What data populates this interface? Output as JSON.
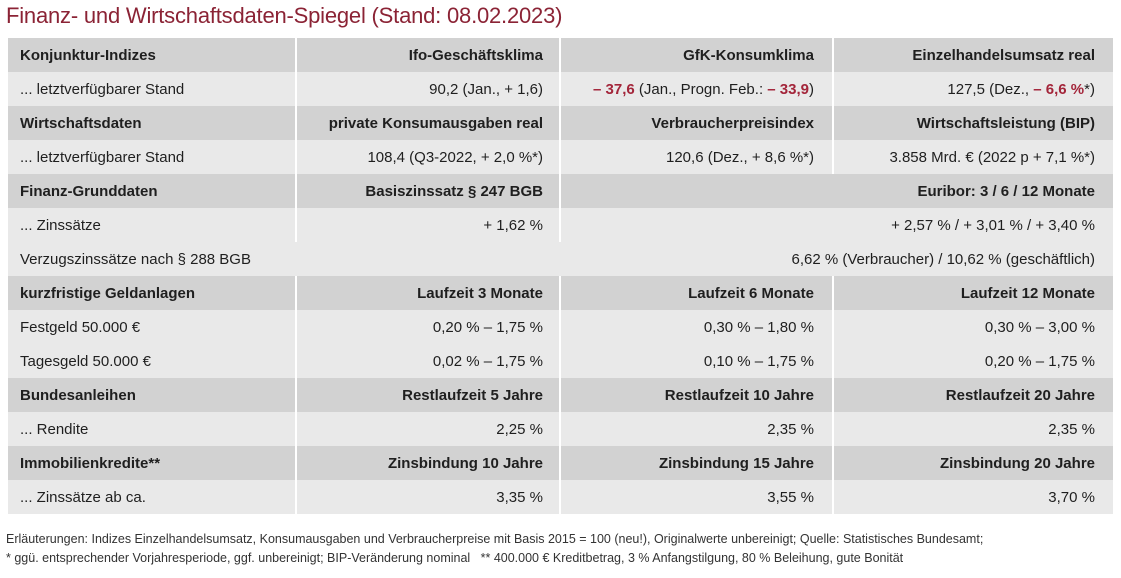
{
  "title": "Finanz- und Wirtschaftsdaten-Spiegel (Stand: 08.02.2023)",
  "colors": {
    "accent": "#8b2335",
    "header_bg": "#d2d2d2",
    "row_bg": "#e9e9e9"
  },
  "rows": {
    "r1": {
      "c1": "Konjunktur-Indizes",
      "c2": "Ifo-Geschäftsklima",
      "c3": "GfK-Konsumklima",
      "c4": "Einzelhandelsumsatz real"
    },
    "r2": {
      "c1": "... letztverfügbarer Stand",
      "c2": "90,2 (Jan., + 1,6)",
      "c3_v1": "– 37,6",
      "c3_mid": " (Jan., Progn. Feb.: ",
      "c3_v2": "– 33,9",
      "c3_end": ")",
      "c4_pre": "127,5 (Dez., ",
      "c4_v": "– 6,6 %",
      "c4_end": "*)"
    },
    "r3": {
      "c1": "Wirtschaftsdaten",
      "c2": "private Konsumausgaben real",
      "c3": "Verbraucherpreisindex",
      "c4": "Wirtschaftsleistung (BIP)"
    },
    "r4": {
      "c1": "... letztverfügbarer Stand",
      "c2": "108,4 (Q3-2022, + 2,0 %*)",
      "c3": "120,6 (Dez., + 8,6 %*)",
      "c4": "3.858 Mrd. € (2022 p + 7,1 %*)"
    },
    "r5": {
      "c1": "Finanz-Grunddaten",
      "c2": "Basiszinssatz § 247 BGB",
      "c34": "Euribor: 3 / 6 / 12 Monate"
    },
    "r6": {
      "c1": "... Zinssätze",
      "c2": "+ 1,62 %",
      "c34": "+ 2,57 % / + 3,01 % / + 3,40 %"
    },
    "r7": {
      "c1": "Verzugszinssätze nach § 288 BGB",
      "c234": "6,62 % (Verbraucher) / 10,62 % (geschäftlich)"
    },
    "r8": {
      "c1": "kurzfristige Geldanlagen",
      "c2": "Laufzeit 3 Monate",
      "c3": "Laufzeit 6 Monate",
      "c4": "Laufzeit 12 Monate"
    },
    "r9": {
      "c1": "Festgeld 50.000 €",
      "c2": "0,20 % – 1,75 %",
      "c3": "0,30 % – 1,80 %",
      "c4": "0,30 % – 3,00 %"
    },
    "r10": {
      "c1": "Tagesgeld 50.000 €",
      "c2": "0,02 % – 1,75 %",
      "c3": "0,10 % – 1,75 %",
      "c4": "0,20 % – 1,75 %"
    },
    "r11": {
      "c1": "Bundesanleihen",
      "c2": "Restlaufzeit 5 Jahre",
      "c3": "Restlaufzeit 10 Jahre",
      "c4": "Restlaufzeit 20 Jahre"
    },
    "r12": {
      "c1": "... Rendite",
      "c2": "2,25 %",
      "c3": "2,35 %",
      "c4": "2,35 %"
    },
    "r13": {
      "c1": "Immobilienkredite**",
      "c2": "Zinsbindung 10 Jahre",
      "c3": "Zinsbindung 15 Jahre",
      "c4": "Zinsbindung 20 Jahre"
    },
    "r14": {
      "c1": "... Zinssätze ab ca.",
      "c2": "3,35 %",
      "c3": "3,55 %",
      "c4": "3,70 %"
    }
  },
  "footnotes": {
    "line1": "Erläuterungen: Indizes Einzelhandelsumsatz, Konsumausgaben und Verbraucherpreise mit Basis 2015 = 100 (neu!), Originalwerte unbereinigt; Quelle: Statistisches Bundesamt;",
    "line2": "* ggü. entsprechender Vorjahresperiode, ggf. unbereinigt; BIP-Veränderung nominal   ** 400.000 € Kreditbetrag, 3 % Anfangstilgung, 80 % Beleihung, gute Bonität"
  }
}
